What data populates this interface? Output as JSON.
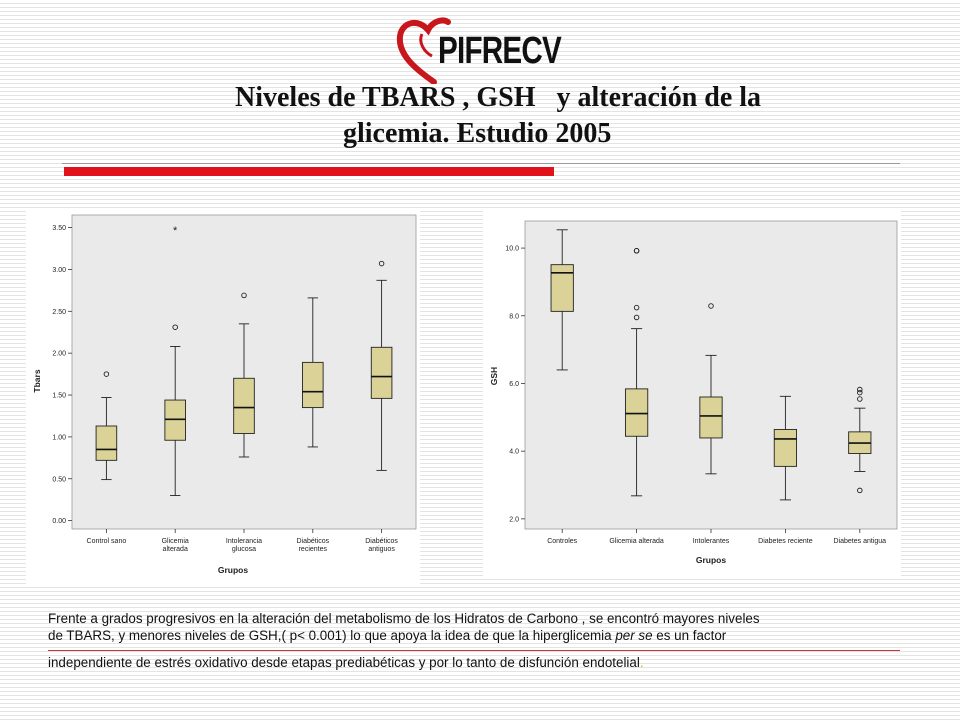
{
  "brand": {
    "name": "PIFRECV"
  },
  "title": {
    "line1": "Niveles de TBARS , GSH   y alteración de la",
    "line2": "glicemia. Estudio 2005"
  },
  "chart_data": [
    {
      "type": "boxplot",
      "xlabel": "Grupos",
      "ylabel": "Tbars",
      "ylim": [
        -0.1,
        3.65
      ],
      "yticks": [
        0.0,
        0.5,
        1.0,
        1.5,
        2.0,
        2.5,
        3.0,
        3.5
      ],
      "ytick_labels": [
        "0.00",
        "0.50",
        "1.00",
        "1.50",
        "2.00",
        "2.50",
        "3.00",
        "3.50"
      ],
      "categories": [
        "Control sano",
        "Glicemia alterada",
        "Intolerancia glucosa",
        "Diabéticos recientes",
        "Diabéticos antiguos"
      ],
      "boxes": [
        {
          "min": 0.49,
          "q1": 0.72,
          "median": 0.85,
          "q3": 1.13,
          "max": 1.47,
          "outliers": [
            1.75
          ],
          "extremes": []
        },
        {
          "min": 0.3,
          "q1": 0.96,
          "median": 1.21,
          "q3": 1.44,
          "max": 2.08,
          "outliers": [
            2.31
          ],
          "extremes": [
            3.48
          ]
        },
        {
          "min": 0.76,
          "q1": 1.04,
          "median": 1.35,
          "q3": 1.7,
          "max": 2.35,
          "outliers": [
            2.69
          ],
          "extremes": []
        },
        {
          "min": 0.88,
          "q1": 1.35,
          "median": 1.54,
          "q3": 1.89,
          "max": 2.66,
          "outliers": [],
          "extremes": []
        },
        {
          "min": 0.6,
          "q1": 1.46,
          "median": 1.72,
          "q3": 2.07,
          "max": 2.87,
          "outliers": [
            3.07
          ],
          "extremes": []
        }
      ],
      "box_color": "#dad297",
      "grid": false
    },
    {
      "type": "boxplot",
      "xlabel": "Grupos",
      "ylabel": "GSH",
      "ylim": [
        1.7,
        10.8
      ],
      "yticks": [
        2.0,
        4.0,
        6.0,
        8.0,
        10.0
      ],
      "ytick_labels": [
        "2.0",
        "4.0",
        "6.0",
        "8.0",
        "10.0"
      ],
      "categories": [
        "Controles",
        "Glicemia alterada",
        "Intolerantes",
        "Diabetes reciente",
        "Diabetes antigua"
      ],
      "boxes": [
        {
          "min": 6.4,
          "q1": 8.13,
          "median": 9.27,
          "q3": 9.51,
          "max": 10.54,
          "outliers": [],
          "extremes": []
        },
        {
          "min": 2.68,
          "q1": 4.44,
          "median": 5.11,
          "q3": 5.84,
          "max": 7.62,
          "outliers": [
            7.95,
            8.24,
            9.92,
            9.92
          ],
          "extremes": []
        },
        {
          "min": 3.33,
          "q1": 4.39,
          "median": 5.04,
          "q3": 5.6,
          "max": 6.83,
          "outliers": [
            8.29
          ],
          "extremes": []
        },
        {
          "min": 2.56,
          "q1": 3.55,
          "median": 4.36,
          "q3": 4.64,
          "max": 5.62,
          "outliers": [],
          "extremes": []
        },
        {
          "min": 3.4,
          "q1": 3.93,
          "median": 4.24,
          "q3": 4.57,
          "max": 5.27,
          "outliers": [
            2.84,
            5.54,
            5.73,
            5.82
          ],
          "extremes": []
        }
      ],
      "box_color": "#dad297",
      "grid": false
    }
  ],
  "footer": {
    "line1": "Frente a  grados progresivos en la alteración del metabolismo de los Hidratos de Carbono , se encontró mayores niveles",
    "line2_a": "de TBARS, y menores niveles  de GSH,( p< 0.001) lo que  apoya la idea de que la hiperglicemia ",
    "line2_italic": "per se",
    "line2_b": " es un factor",
    "line3": "independiente de estrés oxidativo desde etapas prediabéticas y por lo tanto de disfunción endotelial",
    "line3_end": "."
  },
  "colors": {
    "accent_red": "#e0121a",
    "box_fill": "#dad297"
  }
}
